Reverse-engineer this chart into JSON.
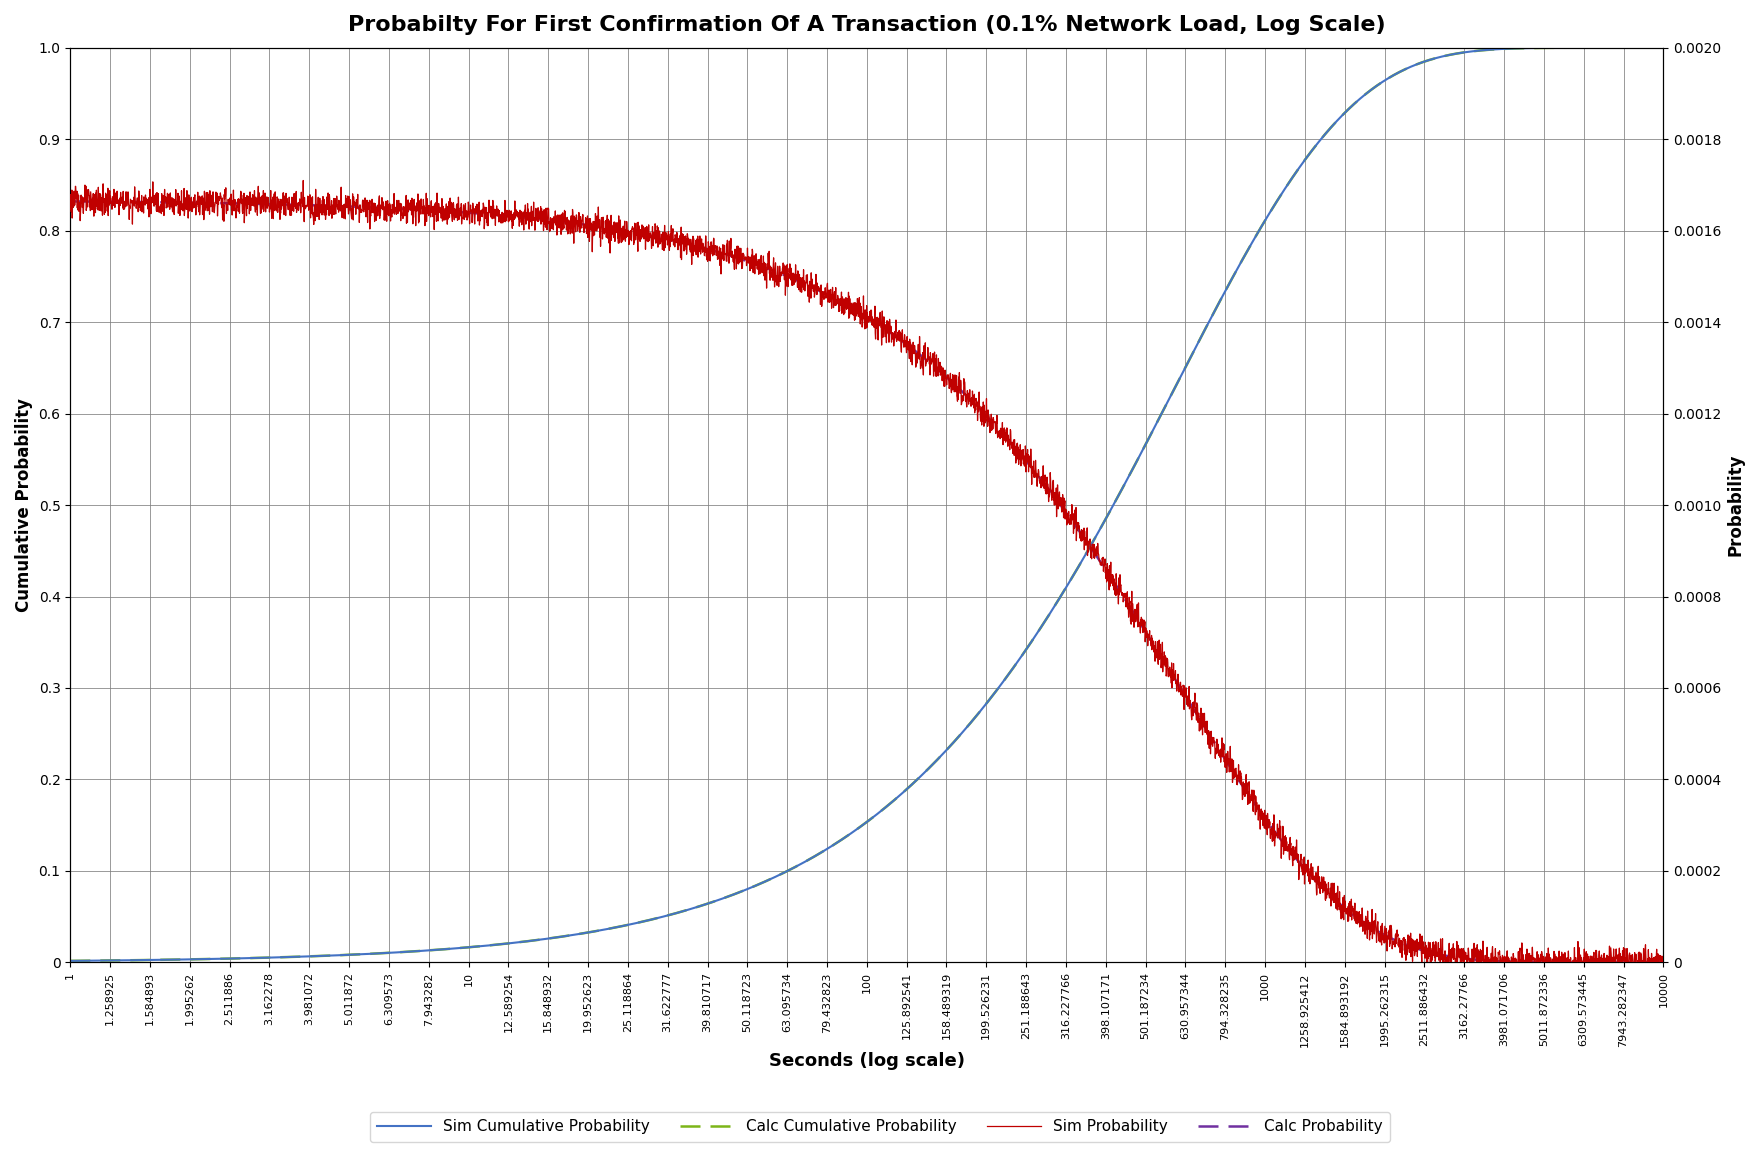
{
  "title": "Probabilty For First Confirmation Of A Transaction (0.1% Network Load, Log Scale)",
  "xlabel": "Seconds (log scale)",
  "ylabel_left": "Cumulative Probability",
  "ylabel_right": "Probability",
  "ylim_left": [
    0,
    1
  ],
  "ylim_right": [
    0,
    0.002
  ],
  "lambda_rate": 0.001666667,
  "color_sim_cum": "#4472C4",
  "color_calc_cum": "#7CB518",
  "color_sim_prob": "#C00000",
  "color_calc_prob": "#7030A0",
  "tick_labels": [
    "1",
    "1.258925",
    "1.584893",
    "1.995262",
    "2.511886",
    "3.162278",
    "3.981072",
    "5.011872",
    "6.309573",
    "7.943282",
    "10",
    "12.589254",
    "15.848932",
    "19.952623",
    "25.118864",
    "31.622777",
    "39.810717",
    "50.118723",
    "63.095734",
    "79.432823",
    "100",
    "125.892541",
    "158.489319",
    "199.526231",
    "251.188643",
    "316.227766",
    "398.107171",
    "501.187234",
    "630.957344",
    "794.328235",
    "1000",
    "1258.925412",
    "1584.893192",
    "1995.262315",
    "2511.886432",
    "3162.27766",
    "3981.071706",
    "5011.872336",
    "6309.573445",
    "7943.282347",
    "10000"
  ],
  "background_color": "#FFFFFF",
  "grid_color": "#808080",
  "legend_entries": [
    "Sim Cumulative Probability",
    "Calc Cumulative Probability",
    "Sim Probability",
    "Calc Probability"
  ],
  "left_yticks": [
    0,
    0.1,
    0.2,
    0.3,
    0.4,
    0.5,
    0.6,
    0.7,
    0.8,
    0.9,
    1.0
  ],
  "right_yticks": [
    0,
    0.0002,
    0.0004,
    0.0006,
    0.0008,
    0.001,
    0.0012,
    0.0014,
    0.0016,
    0.0018,
    0.002
  ]
}
